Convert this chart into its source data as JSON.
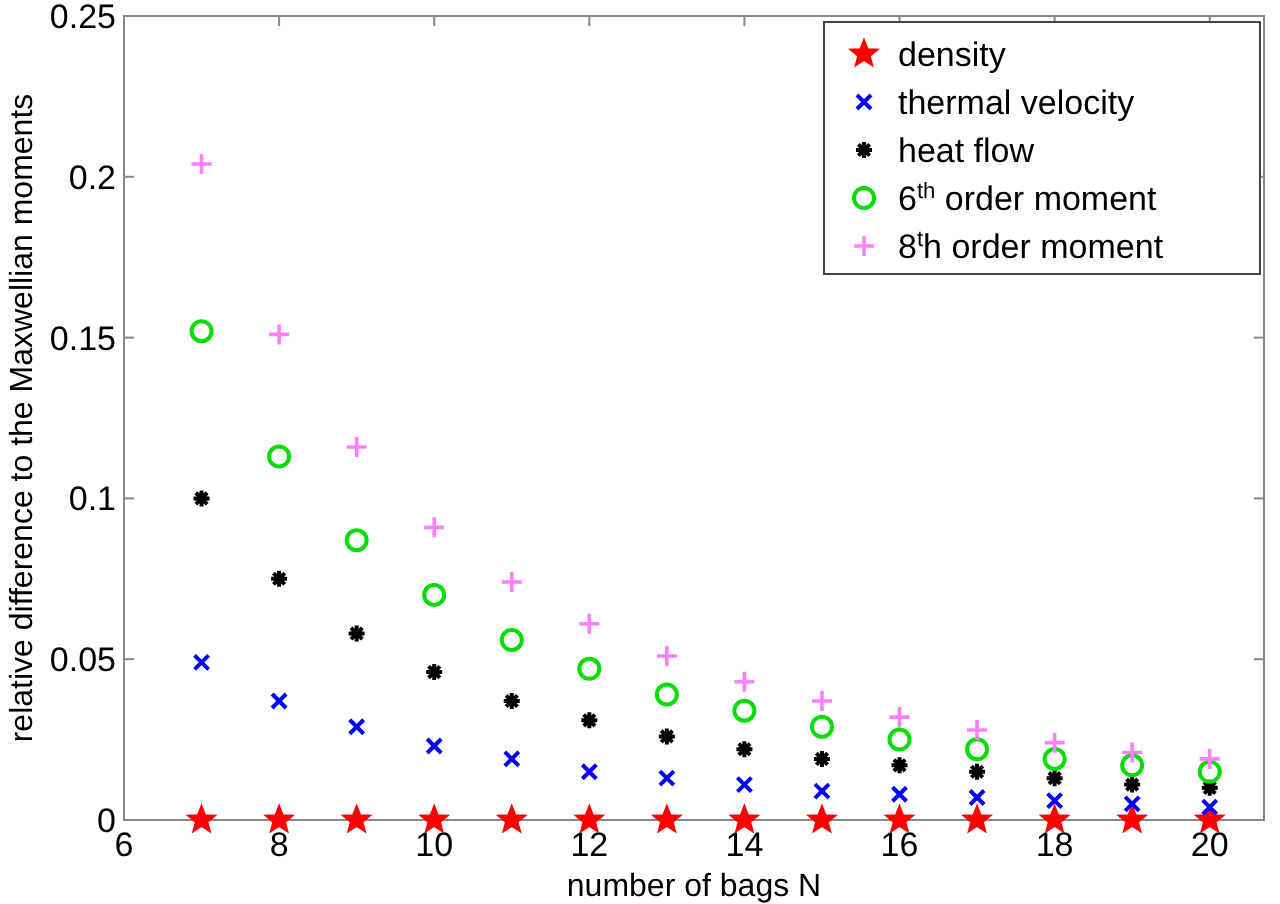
{
  "chart_data": {
    "type": "scatter",
    "xlabel": "number of bags N",
    "ylabel": "relative difference to the Maxwellian moments",
    "x": [
      7,
      8,
      9,
      10,
      11,
      12,
      13,
      14,
      15,
      16,
      17,
      18,
      19,
      20
    ],
    "series": [
      {
        "name": "density",
        "color": "#ff0000",
        "marker": "star",
        "values": [
          0,
          0,
          0,
          0,
          0,
          0,
          0,
          0,
          0,
          0,
          0,
          0,
          0,
          0
        ]
      },
      {
        "name": "thermal velocity",
        "color": "#0000ff",
        "marker": "x",
        "values": [
          0.049,
          0.037,
          0.029,
          0.023,
          0.019,
          0.015,
          0.013,
          0.011,
          0.009,
          0.008,
          0.007,
          0.006,
          0.005,
          0.004
        ]
      },
      {
        "name": "heat flow",
        "color": "#000000",
        "marker": "cross",
        "values": [
          0.1,
          0.075,
          0.058,
          0.046,
          0.037,
          0.031,
          0.026,
          0.022,
          0.019,
          0.017,
          0.015,
          0.013,
          0.011,
          0.01
        ]
      },
      {
        "name": "6$^{th}$ order moment",
        "color": "#00dd00",
        "marker": "circle",
        "values": [
          0.152,
          0.113,
          0.087,
          0.07,
          0.056,
          0.047,
          0.039,
          0.034,
          0.029,
          0.025,
          0.022,
          0.019,
          0.017,
          0.015
        ]
      },
      {
        "name": "8$^{t}$h order moment",
        "color": "#ff80ff",
        "marker": "plus",
        "values": [
          0.204,
          0.151,
          0.116,
          0.091,
          0.074,
          0.061,
          0.051,
          0.043,
          0.037,
          0.032,
          0.028,
          0.024,
          0.021,
          0.019
        ]
      }
    ],
    "xlim": [
      6,
      20.7
    ],
    "ylim": [
      0,
      0.25
    ],
    "xticks": [
      6,
      8,
      10,
      12,
      14,
      16,
      18,
      20
    ],
    "yticks": [
      0,
      0.05,
      0.1,
      0.15,
      0.2,
      0.25
    ],
    "legend": "top right",
    "grid": false
  }
}
